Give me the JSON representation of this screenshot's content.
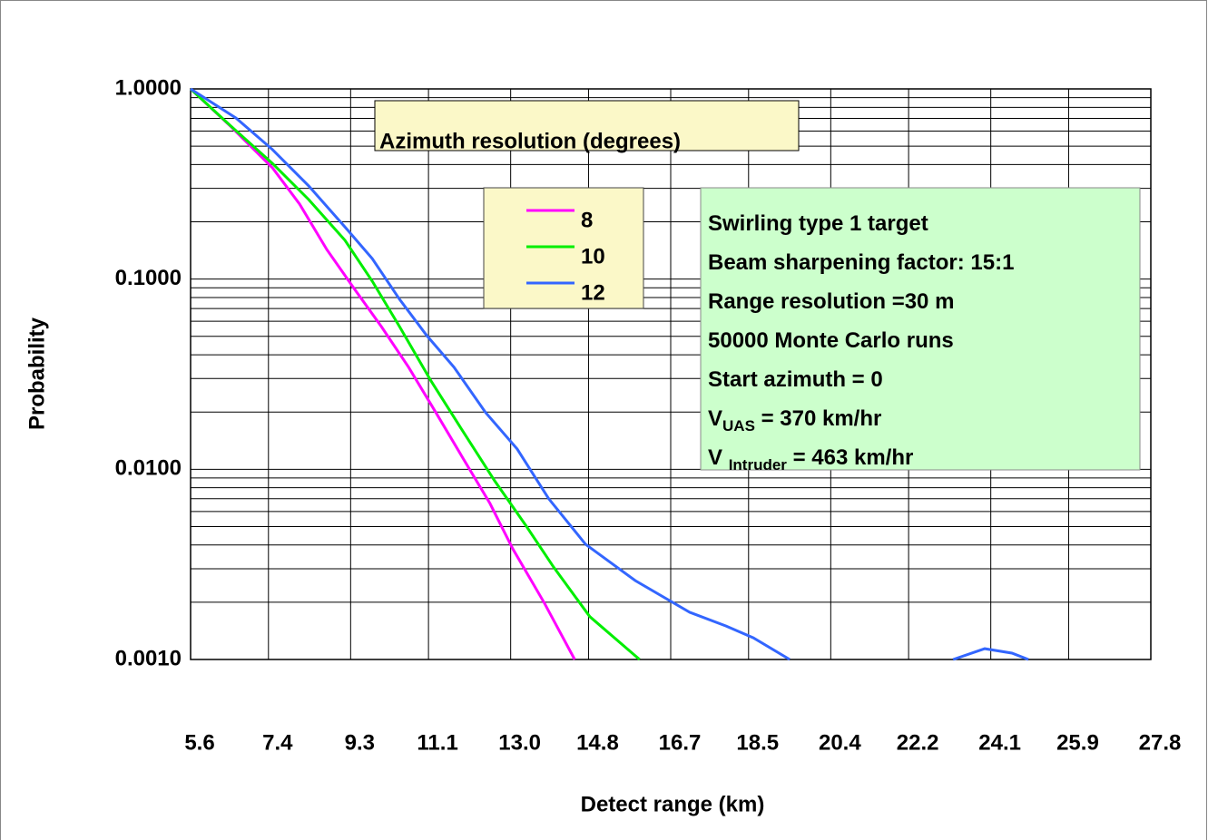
{
  "chart_data": {
    "type": "line",
    "xlabel": "Detect range (km)",
    "ylabel": "Probability",
    "xlim": [
      5.6,
      27.8
    ],
    "xticks": [
      5.6,
      7.4,
      9.3,
      11.1,
      {
        "value": 13,
        "label": "13.0"
      },
      14.8,
      16.7,
      18.5,
      20.4,
      22.2,
      24.1,
      25.9,
      27.8
    ],
    "ylim": [
      0.001,
      1
    ],
    "yscale": "log",
    "yticks": [
      {
        "value": 0.001,
        "label": "0.0010"
      },
      {
        "value": 0.01,
        "label": "0.0100"
      },
      {
        "value": 0.1,
        "label": "0.1000"
      },
      {
        "value": 1,
        "label": "1.0000"
      }
    ],
    "grid": true,
    "minor_grid": true,
    "legend_title": "Azimuth resolution (degrees)",
    "series": [
      {
        "name": "8",
        "color": "#ff00ff",
        "x": [
          5.6,
          6.54,
          7.49,
          8.12,
          8.75,
          9.38,
          10.01,
          10.64,
          11.27,
          11.89,
          12.52,
          13.05,
          13.78,
          14.48
        ],
        "values": [
          1,
          0.631,
          0.385,
          0.248,
          0.143,
          0.0893,
          0.0563,
          0.0344,
          0.0199,
          0.0115,
          0.00662,
          0.00382,
          0.00198,
          0.001
        ]
      },
      {
        "name": "10",
        "color": "#00ee00",
        "x": [
          5.6,
          6.44,
          7.49,
          8.33,
          9.17,
          9.8,
          10.43,
          11.16,
          11.89,
          12.63,
          13.36,
          13.99,
          14.83,
          15.98
        ],
        "values": [
          1,
          0.666,
          0.406,
          0.262,
          0.16,
          0.0975,
          0.0563,
          0.0291,
          0.0159,
          0.0087,
          0.00503,
          0.00307,
          0.00168,
          0.001
        ]
      },
      {
        "name": "12",
        "color": "#3366ff",
        "x": [
          5.6,
          6.65,
          7.49,
          8.33,
          9.17,
          9.8,
          10.43,
          11.06,
          11.69,
          12.42,
          13.15,
          13.88,
          14.73,
          15.88,
          17.14,
          17.98,
          18.61,
          19.45,
          21.3,
          23.23,
          23.96,
          24.59,
          24.97
        ],
        "values": [
          1,
          0.703,
          0.48,
          0.309,
          0.188,
          0.128,
          0.0783,
          0.0505,
          0.0344,
          0.0199,
          0.0128,
          0.007,
          0.00404,
          0.0026,
          0.00177,
          0.0015,
          0.0013,
          0.001,
          null,
          0.001,
          0.00114,
          0.00108,
          0.001
        ]
      }
    ],
    "annotation": [
      {
        "text": "Swirling type 1 target"
      },
      {
        "text": "Beam sharpening factor: 15:1"
      },
      {
        "text": "Range resolution =30 m"
      },
      {
        "text": "50000 Monte Carlo runs"
      },
      {
        "text": "Start azimuth = 0"
      },
      {
        "text": "V",
        "sub": "UAS",
        "rest": " = 370 km/hr"
      },
      {
        "text": "V ",
        "sub": "Intruder",
        "rest": " = 463 km/hr"
      }
    ]
  }
}
